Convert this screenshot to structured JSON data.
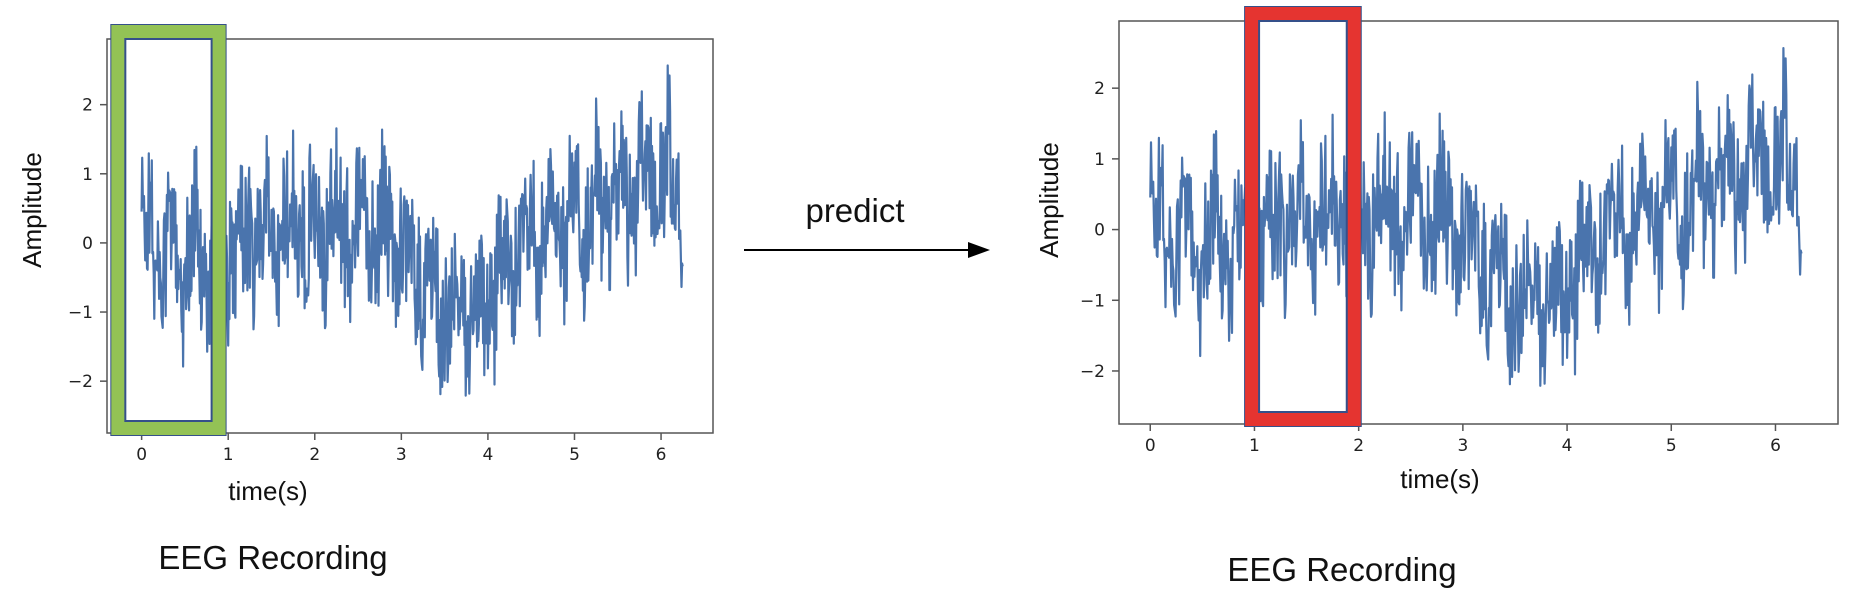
{
  "arrow": {
    "label": "predict"
  },
  "chart_data": [
    {
      "type": "line",
      "caption": "EEG Recording",
      "xlabel": "time(s)",
      "ylabel": "Amplitude",
      "xlim": [
        -0.4,
        6.6
      ],
      "ylim": [
        -2.75,
        2.95
      ],
      "xticks": [
        0,
        1,
        2,
        3,
        4,
        5,
        6
      ],
      "yticks": [
        -2,
        -1,
        0,
        1,
        2
      ],
      "series_color": "#4a74ad",
      "window": {
        "x_range": [
          -0.35,
          0.97
        ],
        "color": "#93c255",
        "role": "input"
      },
      "signal": {
        "x_range": [
          0.0,
          6.25
        ],
        "trend": [
          [
            0.0,
            0.1
          ],
          [
            0.35,
            -0.2
          ],
          [
            0.9,
            -0.15
          ],
          [
            1.4,
            0.1
          ],
          [
            2.2,
            0.3
          ],
          [
            2.8,
            0.2
          ],
          [
            3.2,
            -0.4
          ],
          [
            3.6,
            -1.2
          ],
          [
            4.1,
            -0.6
          ],
          [
            4.5,
            0.2
          ],
          [
            5.0,
            0.3
          ],
          [
            5.5,
            0.6
          ],
          [
            5.8,
            1.0
          ],
          [
            6.25,
            0.9
          ]
        ]
      }
    },
    {
      "type": "line",
      "caption": "EEG Recording",
      "xlabel": "time(s)",
      "ylabel": "Amplitude",
      "xlim": [
        -0.3,
        6.6
      ],
      "ylim": [
        -2.75,
        2.95
      ],
      "xticks": [
        0,
        1,
        2,
        3,
        4,
        5,
        6
      ],
      "yticks": [
        -2,
        -1,
        0,
        1,
        2
      ],
      "series_color": "#4a74ad",
      "window": {
        "x_range": [
          0.91,
          2.02
        ],
        "color": "#e53430",
        "role": "predicted"
      },
      "signal": {
        "x_range": [
          0.0,
          6.25
        ],
        "trend": [
          [
            0.0,
            0.1
          ],
          [
            0.35,
            -0.2
          ],
          [
            0.9,
            -0.15
          ],
          [
            1.4,
            0.1
          ],
          [
            2.2,
            0.3
          ],
          [
            2.8,
            0.2
          ],
          [
            3.2,
            -0.4
          ],
          [
            3.6,
            -1.2
          ],
          [
            4.1,
            -0.6
          ],
          [
            4.5,
            0.2
          ],
          [
            5.0,
            0.3
          ],
          [
            5.5,
            0.6
          ],
          [
            5.8,
            1.0
          ],
          [
            6.25,
            0.9
          ]
        ]
      }
    }
  ]
}
